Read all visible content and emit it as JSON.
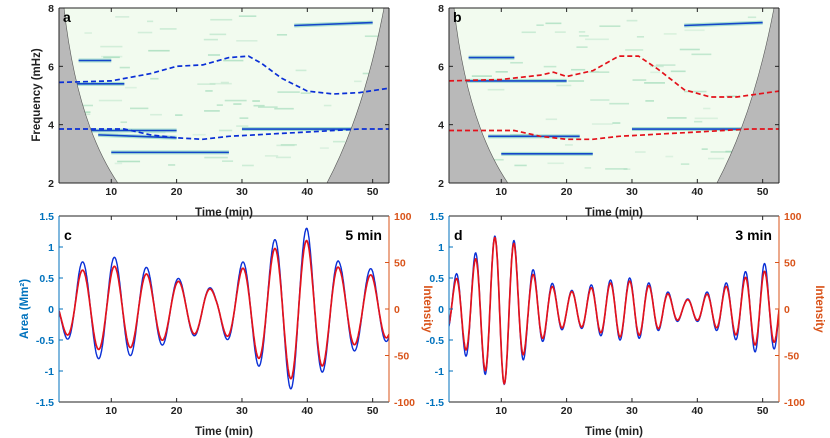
{
  "colors": {
    "blue": "#0a2fd6",
    "red": "#e3121b",
    "leftAxis": "#0072bd",
    "rightAxis": "#d95319",
    "specBg": "#f2fbef",
    "specSpeckle": "#9ad8b4",
    "coneGrey": "#b9b9b9"
  },
  "chart_data": [
    {
      "panel": "a",
      "type": "heatmap",
      "xlabel": "Time (min)",
      "ylabel": "Frequency (mHz)",
      "xlim": [
        2,
        52.5
      ],
      "ylim": [
        2,
        8
      ],
      "xticks": [
        10,
        20,
        30,
        40,
        50
      ],
      "yticks": [
        2,
        4,
        6,
        8
      ],
      "ridges": [
        {
          "x": [
            5,
            10
          ],
          "y": [
            6.2,
            6.2
          ]
        },
        {
          "x": [
            3,
            12
          ],
          "y": [
            5.4,
            5.4
          ]
        },
        {
          "x": [
            8,
            20
          ],
          "y": [
            3.65,
            3.55
          ]
        },
        {
          "x": [
            10,
            28
          ],
          "y": [
            3.05,
            3.05
          ]
        },
        {
          "x": [
            3,
            20
          ],
          "y": [
            3.8,
            3.8
          ]
        },
        {
          "x": [
            30,
            52
          ],
          "y": [
            3.85,
            3.85
          ]
        },
        {
          "x": [
            38,
            50
          ],
          "y": [
            7.4,
            7.5
          ]
        }
      ],
      "tracks": [
        {
          "name": "upper",
          "style": "dashed",
          "color": "blue",
          "x": [
            2,
            10,
            16,
            20,
            24,
            28,
            31,
            33,
            36,
            40,
            44,
            48,
            52.5
          ],
          "y": [
            5.45,
            5.5,
            5.75,
            6.0,
            6.05,
            6.3,
            6.35,
            6.1,
            5.6,
            5.15,
            5.05,
            5.1,
            5.25
          ]
        },
        {
          "name": "lower",
          "style": "dashed",
          "color": "blue",
          "x": [
            2,
            12,
            16,
            20,
            24,
            28,
            32,
            36,
            40,
            44,
            48,
            52.5
          ],
          "y": [
            3.85,
            3.85,
            3.65,
            3.55,
            3.5,
            3.6,
            3.65,
            3.7,
            3.75,
            3.8,
            3.85,
            3.85
          ]
        }
      ]
    },
    {
      "panel": "b",
      "type": "heatmap",
      "xlabel": "Time (min)",
      "ylabel": "",
      "xlim": [
        2,
        52.5
      ],
      "ylim": [
        2,
        8
      ],
      "xticks": [
        10,
        20,
        30,
        40,
        50
      ],
      "yticks": [
        2,
        4,
        6,
        8
      ],
      "ridges": [
        {
          "x": [
            38,
            50
          ],
          "y": [
            7.4,
            7.5
          ]
        },
        {
          "x": [
            5,
            12
          ],
          "y": [
            6.3,
            6.3
          ]
        },
        {
          "x": [
            3,
            20
          ],
          "y": [
            5.5,
            5.5
          ]
        },
        {
          "x": [
            8,
            22
          ],
          "y": [
            3.6,
            3.6
          ]
        },
        {
          "x": [
            10,
            24
          ],
          "y": [
            3.0,
            3.0
          ]
        },
        {
          "x": [
            30,
            52
          ],
          "y": [
            3.85,
            3.85
          ]
        }
      ],
      "tracks": [
        {
          "name": "upper",
          "style": "dashed",
          "color": "red",
          "x": [
            2,
            10,
            16,
            18,
            20,
            24,
            28,
            31,
            34,
            38,
            42,
            46,
            52.5
          ],
          "y": [
            5.5,
            5.55,
            5.7,
            5.8,
            5.65,
            5.85,
            6.35,
            6.35,
            5.9,
            5.2,
            4.95,
            4.95,
            5.15
          ]
        },
        {
          "name": "lower",
          "style": "dashed",
          "color": "red",
          "x": [
            2,
            12,
            16,
            20,
            24,
            28,
            32,
            36,
            40,
            44,
            48,
            52.5
          ],
          "y": [
            3.8,
            3.8,
            3.6,
            3.5,
            3.5,
            3.6,
            3.65,
            3.7,
            3.75,
            3.8,
            3.85,
            3.85
          ]
        }
      ]
    },
    {
      "panel": "c",
      "type": "line",
      "annotation": "5 min",
      "xlabel": "Time (min)",
      "ylabel": "Area (Mm²)",
      "ylabel_right": "Intensity",
      "xlim": [
        2,
        52.5
      ],
      "ylim": [
        -1.5,
        1.5
      ],
      "ylim_right": [
        -100,
        100
      ],
      "xticks": [
        10,
        20,
        30,
        40,
        50
      ],
      "yticks": [
        -1.5,
        -1,
        -0.5,
        0,
        0.5,
        1,
        1.5
      ],
      "yticks_right": [
        -100,
        -50,
        0,
        50,
        100
      ],
      "series": [
        {
          "name": "Area",
          "color": "blue",
          "period_min": 4.9,
          "phase_min": 5.6,
          "amp_t": [
            2,
            5,
            8,
            10,
            13,
            16,
            20,
            24,
            26,
            30,
            33,
            36,
            38,
            40,
            42,
            45,
            48,
            50,
            52.5
          ],
          "amp_v": [
            0.3,
            0.75,
            0.8,
            0.85,
            0.75,
            0.65,
            0.5,
            0.4,
            0.3,
            0.75,
            0.95,
            1.2,
            1.32,
            1.3,
            1.05,
            0.75,
            0.65,
            0.65,
            0.5
          ]
        },
        {
          "name": "Intensity",
          "color": "red",
          "period_min": 4.9,
          "phase_min": 5.6,
          "amp_t": [
            2,
            5,
            8,
            10,
            13,
            16,
            20,
            24,
            26,
            30,
            33,
            36,
            38,
            40,
            42,
            45,
            48,
            50,
            52.5
          ],
          "amp_v": [
            0.28,
            0.62,
            0.65,
            0.7,
            0.62,
            0.55,
            0.45,
            0.38,
            0.28,
            0.65,
            0.82,
            1.05,
            1.15,
            1.1,
            0.95,
            0.65,
            0.55,
            0.55,
            0.45
          ]
        }
      ]
    },
    {
      "panel": "d",
      "type": "line",
      "annotation": "3 min",
      "xlabel": "Time (min)",
      "ylabel": "",
      "ylabel_right": "Intensity",
      "xlim": [
        2,
        52.5
      ],
      "ylim": [
        -1.5,
        1.5
      ],
      "ylim_right": [
        -100,
        100
      ],
      "xticks": [
        10,
        20,
        30,
        40,
        50
      ],
      "yticks": [
        -1.5,
        -1,
        -0.5,
        0,
        0.5,
        1,
        1.5
      ],
      "yticks_right": [
        -100,
        -50,
        0,
        50,
        100
      ],
      "series": [
        {
          "name": "Area",
          "color": "blue",
          "period_min": 2.95,
          "phase_min": 3.1,
          "amp_t": [
            2,
            4,
            6,
            8,
            10,
            12,
            14,
            16,
            18,
            20,
            22,
            24,
            26,
            28,
            30,
            32,
            34,
            36,
            38,
            40,
            42,
            44,
            46,
            48,
            50,
            52.5
          ],
          "amp_v": [
            0.4,
            0.7,
            0.9,
            1.1,
            1.25,
            1.1,
            0.7,
            0.55,
            0.4,
            0.3,
            0.3,
            0.4,
            0.45,
            0.5,
            0.5,
            0.45,
            0.35,
            0.25,
            0.15,
            0.2,
            0.3,
            0.4,
            0.5,
            0.65,
            0.75,
            0.6
          ]
        },
        {
          "name": "Intensity",
          "color": "red",
          "period_min": 2.95,
          "phase_min": 3.1,
          "amp_t": [
            2,
            4,
            6,
            8,
            10,
            12,
            14,
            16,
            18,
            20,
            22,
            24,
            26,
            28,
            30,
            32,
            34,
            36,
            38,
            40,
            42,
            44,
            46,
            48,
            50,
            52.5
          ],
          "amp_v": [
            0.35,
            0.6,
            0.8,
            1.05,
            1.25,
            1.05,
            0.6,
            0.5,
            0.35,
            0.28,
            0.28,
            0.35,
            0.4,
            0.45,
            0.45,
            0.4,
            0.32,
            0.22,
            0.14,
            0.18,
            0.26,
            0.35,
            0.42,
            0.55,
            0.62,
            0.5
          ]
        }
      ]
    }
  ]
}
